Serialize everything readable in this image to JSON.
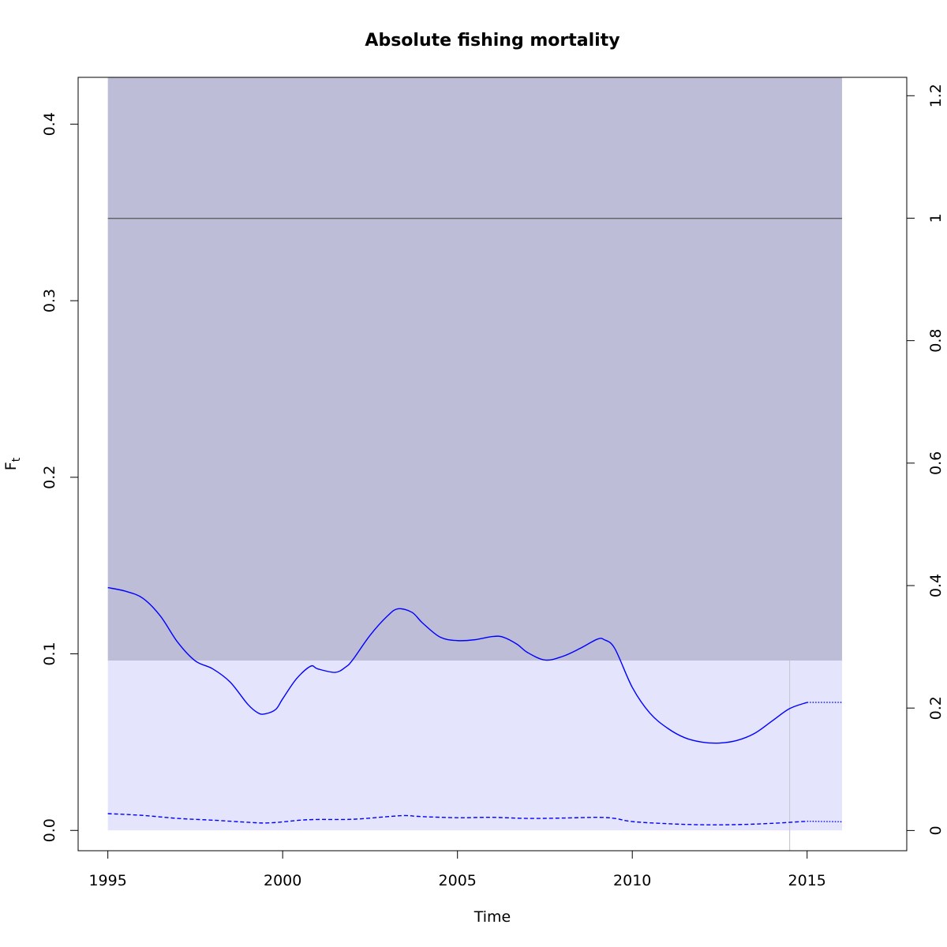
{
  "chart_data": {
    "type": "line",
    "title": "Absolute fishing mortality",
    "xlabel": "Time",
    "ylabel": "F",
    "ylabel_subscript": "t",
    "xlim": [
      1994.15,
      2017.85
    ],
    "ylim": [
      -0.0115,
      0.4265
    ],
    "y2lim": [
      -0.033,
      1.23
    ],
    "x_ticks": [
      1995,
      2000,
      2005,
      2010,
      2015
    ],
    "y_ticks": [
      0.0,
      0.1,
      0.2,
      0.3,
      0.4
    ],
    "y_tick_labels": [
      "0.0",
      "0.1",
      "0.2",
      "0.3",
      "0.4"
    ],
    "y2_ticks": [
      0,
      0.2,
      0.4,
      0.6,
      0.8,
      1,
      1.2
    ],
    "y2_tick_labels": [
      "0",
      "0.2",
      "0.4",
      "0.6",
      "0.8",
      "1",
      "1.2"
    ],
    "grid": false,
    "regions": {
      "outer_band": {
        "x": [
          1995,
          2016
        ],
        "y": [
          0.0962,
          0.4265
        ],
        "color": "#bdbdd8"
      },
      "inner_band": {
        "x": [
          1995,
          2016
        ],
        "y": [
          0.0,
          0.0962
        ],
        "color": "#e4e4fc"
      }
    },
    "reference_line": {
      "y": 0.3466,
      "x": [
        1995,
        2016
      ],
      "color": "#555555"
    },
    "vertical_marker": {
      "x": 2014.5,
      "color": "#c8c8d8"
    },
    "series": [
      {
        "role": "estimate",
        "color": "#0000ff",
        "style": "solid",
        "x": [
          1995,
          1995.5,
          1996,
          1996.5,
          1997,
          1997.5,
          1998,
          1998.5,
          1999,
          1999.3,
          1999.5,
          1999.8,
          2000,
          2000.4,
          2000.8,
          2001,
          2001.5,
          2001.8,
          2002,
          2002.5,
          2003,
          2003.3,
          2003.7,
          2004,
          2004.5,
          2005,
          2005.5,
          2006,
          2006.3,
          2006.7,
          2007,
          2007.5,
          2008,
          2008.5,
          2009,
          2009.2,
          2009.5,
          2010,
          2010.5,
          2011,
          2011.5,
          2012,
          2012.5,
          2013,
          2013.5,
          2014,
          2014.5,
          2015
        ],
        "values": [
          0.1375,
          0.1355,
          0.1315,
          0.1215,
          0.1065,
          0.096,
          0.0915,
          0.084,
          0.0715,
          0.0665,
          0.066,
          0.0685,
          0.0745,
          0.086,
          0.093,
          0.0915,
          0.0895,
          0.0925,
          0.0965,
          0.1105,
          0.1215,
          0.1255,
          0.1235,
          0.1175,
          0.1095,
          0.1075,
          0.108,
          0.1098,
          0.1095,
          0.1055,
          0.1008,
          0.0965,
          0.0985,
          0.103,
          0.1083,
          0.108,
          0.103,
          0.081,
          0.0665,
          0.058,
          0.0525,
          0.05,
          0.0495,
          0.051,
          0.055,
          0.062,
          0.069,
          0.0725
        ]
      },
      {
        "role": "forecast",
        "color": "#0000ff",
        "style": "dotted",
        "x": [
          2015,
          2016
        ],
        "values": [
          0.0725,
          0.0725
        ]
      },
      {
        "role": "lower",
        "color": "#0000ff",
        "style": "dashed",
        "x": [
          1995,
          1996,
          1997,
          1998,
          1999,
          1999.5,
          2000,
          2000.5,
          2001,
          2002,
          2003,
          2003.5,
          2004,
          2005,
          2006,
          2007,
          2008,
          2009,
          2009.5,
          2010,
          2011,
          2012,
          2013,
          2014,
          2015
        ],
        "values": [
          0.0095,
          0.0085,
          0.0068,
          0.0058,
          0.0046,
          0.0042,
          0.0048,
          0.0058,
          0.0062,
          0.0063,
          0.0078,
          0.0084,
          0.0078,
          0.0072,
          0.0074,
          0.0068,
          0.007,
          0.0074,
          0.0068,
          0.005,
          0.0038,
          0.0032,
          0.0033,
          0.004,
          0.0052
        ]
      },
      {
        "role": "lower-forecast",
        "color": "#0000ff",
        "style": "dotted",
        "x": [
          2015,
          2016
        ],
        "values": [
          0.0052,
          0.0049
        ]
      }
    ]
  }
}
